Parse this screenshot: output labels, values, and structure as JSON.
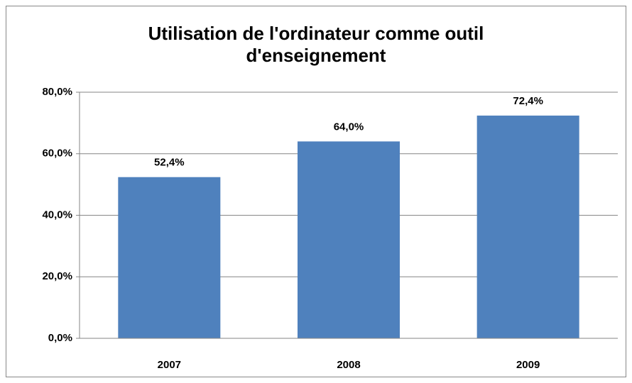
{
  "chart_data": {
    "type": "bar",
    "title": "Utilisation de l'ordinateur comme outil d'enseignement",
    "categories": [
      "2007",
      "2008",
      "2009"
    ],
    "values": [
      52.4,
      64.0,
      72.4
    ],
    "value_labels": [
      "52,4%",
      "64,0%",
      "72,4%"
    ],
    "color": "#4f81bd",
    "ylim": [
      0,
      80
    ],
    "yticks": [
      {
        "value": 0,
        "label": "0,0%"
      },
      {
        "value": 20,
        "label": "20,0%"
      },
      {
        "value": 40,
        "label": "40,0%"
      },
      {
        "value": 60,
        "label": "60,0%"
      },
      {
        "value": 80,
        "label": "80,0%"
      }
    ],
    "grid": true
  }
}
